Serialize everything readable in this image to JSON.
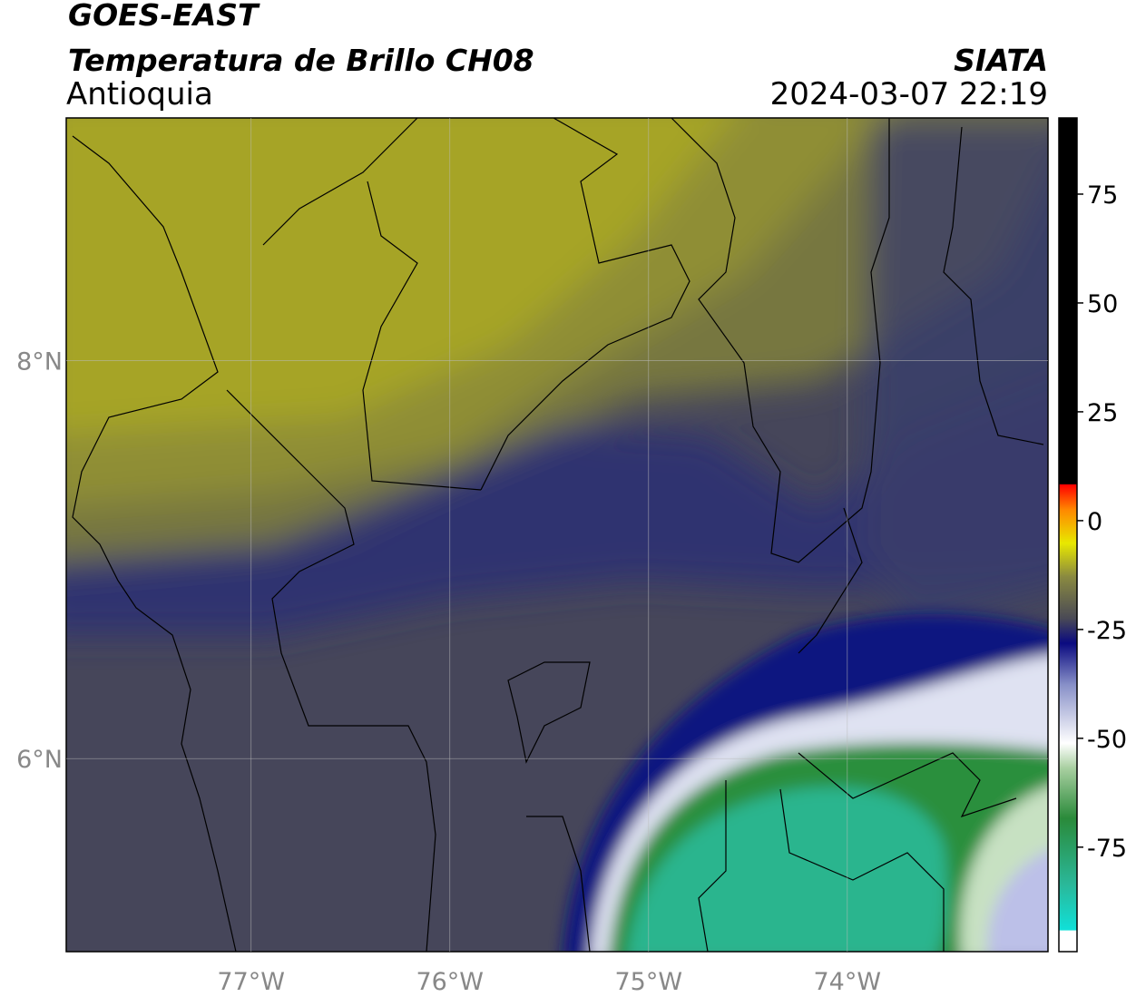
{
  "header": {
    "title": "GOES-EAST",
    "product": "Temperatura de Brillo CH08",
    "region": "Antioquia",
    "source": "SIATA",
    "datetime": "2024-03-07 22:19"
  },
  "map": {
    "lon_range": [
      -77.93,
      -72.99
    ],
    "lat_range": [
      5.03,
      9.22
    ],
    "lon_ticks": [
      {
        "value": -77,
        "label": "77°W"
      },
      {
        "value": -76,
        "label": "76°W"
      },
      {
        "value": -75,
        "label": "75°W"
      },
      {
        "value": -74,
        "label": "74°W"
      }
    ],
    "lat_ticks": [
      {
        "value": 8,
        "label": "8°N"
      },
      {
        "value": 6,
        "label": "6°N"
      }
    ]
  },
  "colorbar": {
    "range": [
      -99,
      92.5
    ],
    "ticks": [
      75,
      50,
      25,
      0,
      -25,
      -50,
      -75
    ]
  }
}
